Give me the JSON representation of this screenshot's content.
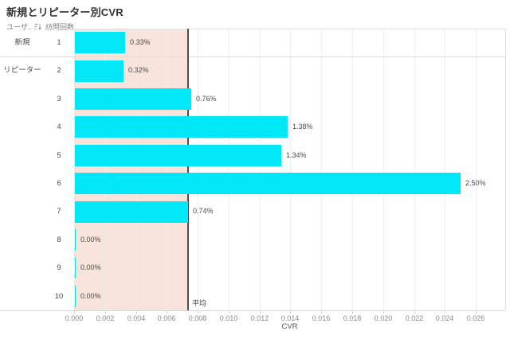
{
  "title": "新規とリピーター別CVR",
  "header": {
    "user_type_label": "ユーザ..",
    "user_type_sort_icon": "sort-descending-icon",
    "visits_label": "訪問回数"
  },
  "x_axis": {
    "label": "CVR"
  },
  "reference": {
    "label": "平均"
  },
  "colors": {
    "bar": "#00e7f7",
    "band": "#f7e3da",
    "reference_line": "#4f4f4f",
    "grid": "#efefef",
    "plot_border": "#e2e2e2",
    "axis_line": "#d7d7d7",
    "separator": "#dcdcdc",
    "tick_mark": "#d0d0d0"
  },
  "chart_data": {
    "type": "bar",
    "orientation": "horizontal",
    "title": "新規とリピーター別CVR",
    "xlabel": "CVR",
    "group_column_header": "ユーザ..",
    "category_column_header": "訪問回数",
    "groups": [
      {
        "label": "新規",
        "span": 1
      },
      {
        "label": "リピーター",
        "span": 9
      }
    ],
    "categories": [
      "1",
      "2",
      "3",
      "4",
      "5",
      "6",
      "7",
      "8",
      "9",
      "10"
    ],
    "values": [
      0.0033,
      0.0032,
      0.0076,
      0.0138,
      0.0134,
      0.025,
      0.0074,
      0,
      0,
      0
    ],
    "value_labels": [
      "0.33%",
      "0.32%",
      "0.76%",
      "1.38%",
      "1.34%",
      "2.50%",
      "0.74%",
      "0.00%",
      "0.00%",
      "0.00%"
    ],
    "xlim": [
      0,
      0.0279
    ],
    "xticks": [
      0,
      0.002,
      0.004,
      0.006,
      0.008,
      0.01,
      0.012,
      0.014,
      0.016,
      0.018,
      0.02,
      0.022,
      0.024,
      0.026
    ],
    "xtick_labels": [
      "0.000",
      "0.002",
      "0.004",
      "0.006",
      "0.008",
      "0.010",
      "0.012",
      "0.014",
      "0.016",
      "0.018",
      "0.020",
      "0.022",
      "0.024",
      "0.026"
    ],
    "reference_line": {
      "value": 0.0074,
      "label": "平均"
    },
    "reference_band": {
      "from": 0,
      "to": 0.0074
    },
    "grid": "vertical-light",
    "legend": "none"
  }
}
